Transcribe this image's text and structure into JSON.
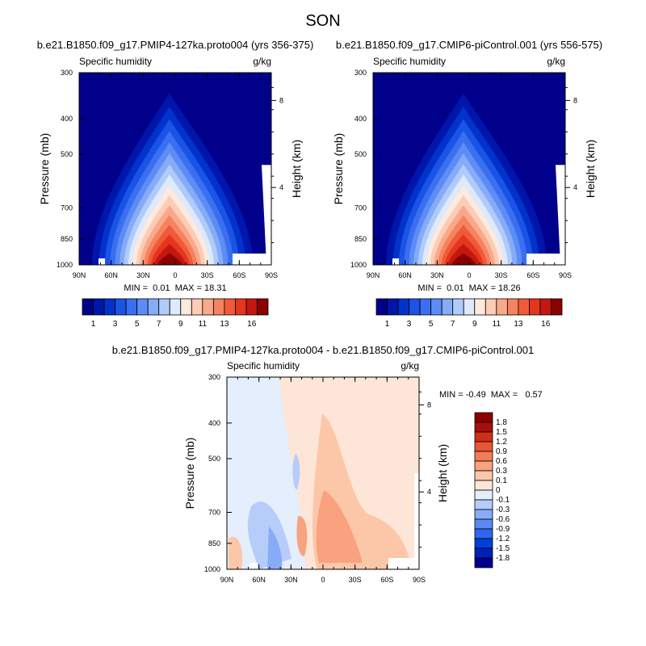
{
  "page": {
    "title": "SON"
  },
  "colors": {
    "ramp": [
      "#00008b",
      "#0015aa",
      "#0033cc",
      "#1a53e6",
      "#3a70f0",
      "#5c8cf5",
      "#86abf7",
      "#b1cbf9",
      "#dde9fc",
      "#fde9dd",
      "#fbcdb4",
      "#f9a98a",
      "#f5835f",
      "#ef5b3a",
      "#e3361d",
      "#c4170f",
      "#8b0000"
    ],
    "diff_ramp": [
      "#00008b",
      "#0020b8",
      "#0040d8",
      "#2e66ef",
      "#5a89f4",
      "#88abf7",
      "#b6cdfa",
      "#e4eefd",
      "#fde6d8",
      "#fcc7a9",
      "#f9a27f",
      "#f47b55",
      "#ea5533",
      "#d12e19",
      "#a80e0a",
      "#8b0000"
    ]
  },
  "chart_data": [
    {
      "type": "heatmap",
      "title": "b.e21.B1850.f09_g17.PMIP4-127ka.proto004 (yrs 356-375)",
      "left_label": "Specific humidity",
      "right_label": "g/kg",
      "ylabel": "Pressure (mb)",
      "y2label": "Height (km)",
      "x_ticks": [
        "90N",
        "60N",
        "30N",
        "0",
        "30S",
        "60S",
        "90S"
      ],
      "y_ticks": [
        "300",
        "400",
        "500",
        "700",
        "850",
        "1000"
      ],
      "y2_ticks": [
        "8",
        "4"
      ],
      "stats": "MIN =  0.01  MAX = 18.31",
      "min": 0.01,
      "max": 18.31,
      "colorbar_labels": [
        "1",
        "3",
        "5",
        "7",
        "9",
        "11",
        "13",
        "16"
      ]
    },
    {
      "type": "heatmap",
      "title": "b.e21.B1850.f09_g17.CMIP6-piControl.001 (yrs 556-575)",
      "left_label": "Specific humidity",
      "right_label": "g/kg",
      "ylabel": "Pressure (mb)",
      "y2label": "Height (km)",
      "x_ticks": [
        "90N",
        "60N",
        "30N",
        "0",
        "30S",
        "60S",
        "90S"
      ],
      "y_ticks": [
        "300",
        "400",
        "500",
        "700",
        "850",
        "1000"
      ],
      "y2_ticks": [
        "8",
        "4"
      ],
      "stats": "MIN =  0.01  MAX = 18.26",
      "min": 0.01,
      "max": 18.26,
      "colorbar_labels": [
        "1",
        "3",
        "5",
        "7",
        "9",
        "11",
        "13",
        "16"
      ]
    },
    {
      "type": "heatmap",
      "title": "b.e21.B1850.f09_g17.PMIP4-127ka.proto004 - b.e21.B1850.f09_g17.CMIP6-piControl.001",
      "left_label": "Specific humidity",
      "right_label": "g/kg",
      "ylabel": "Pressure (mb)",
      "y2label": "Height (km)",
      "x_ticks": [
        "90N",
        "60N",
        "30N",
        "0",
        "30S",
        "60S",
        "90S"
      ],
      "y_ticks": [
        "300",
        "400",
        "500",
        "700",
        "850",
        "1000"
      ],
      "y2_ticks": [
        "8",
        "4"
      ],
      "stats": "MIN = -0.49  MAX =   0.57",
      "min": -0.49,
      "max": 0.57,
      "colorbar_labels": [
        "1.8",
        "1.5",
        "1.2",
        "0.9",
        "0.6",
        "0.3",
        "0.1",
        "0",
        "-0.1",
        "-0.3",
        "-0.6",
        "-0.9",
        "-1.2",
        "-1.5",
        "-1.8"
      ]
    }
  ]
}
